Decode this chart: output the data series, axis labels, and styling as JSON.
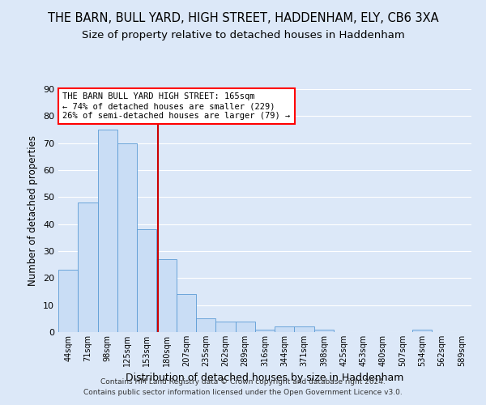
{
  "title1": "THE BARN, BULL YARD, HIGH STREET, HADDENHAM, ELY, CB6 3XA",
  "title2": "Size of property relative to detached houses in Haddenham",
  "xlabel": "Distribution of detached houses by size in Haddenham",
  "ylabel": "Number of detached properties",
  "bar_values": [
    23,
    48,
    75,
    70,
    38,
    27,
    14,
    5,
    4,
    4,
    1,
    2,
    2,
    1,
    0,
    0,
    0,
    0,
    1,
    0,
    0
  ],
  "bar_labels": [
    "44sqm",
    "71sqm",
    "98sqm",
    "125sqm",
    "153sqm",
    "180sqm",
    "207sqm",
    "235sqm",
    "262sqm",
    "289sqm",
    "316sqm",
    "344sqm",
    "371sqm",
    "398sqm",
    "425sqm",
    "453sqm",
    "480sqm",
    "507sqm",
    "534sqm",
    "562sqm",
    "589sqm"
  ],
  "bar_color": "#c9ddf5",
  "bar_edge_color": "#5b9bd5",
  "red_line_x": 4.57,
  "annotation_title": "THE BARN BULL YARD HIGH STREET: 165sqm",
  "annotation_line1": "← 74% of detached houses are smaller (229)",
  "annotation_line2": "26% of semi-detached houses are larger (79) →",
  "footer1": "Contains HM Land Registry data © Crown copyright and database right 2024.",
  "footer2": "Contains public sector information licensed under the Open Government Licence v3.0.",
  "ylim": [
    0,
    90
  ],
  "yticks": [
    0,
    10,
    20,
    30,
    40,
    50,
    60,
    70,
    80,
    90
  ],
  "fig_background": "#dce8f8",
  "axes_background": "#dce8f8",
  "grid_color": "#ffffff",
  "title1_fontsize": 10.5,
  "title2_fontsize": 9.5
}
